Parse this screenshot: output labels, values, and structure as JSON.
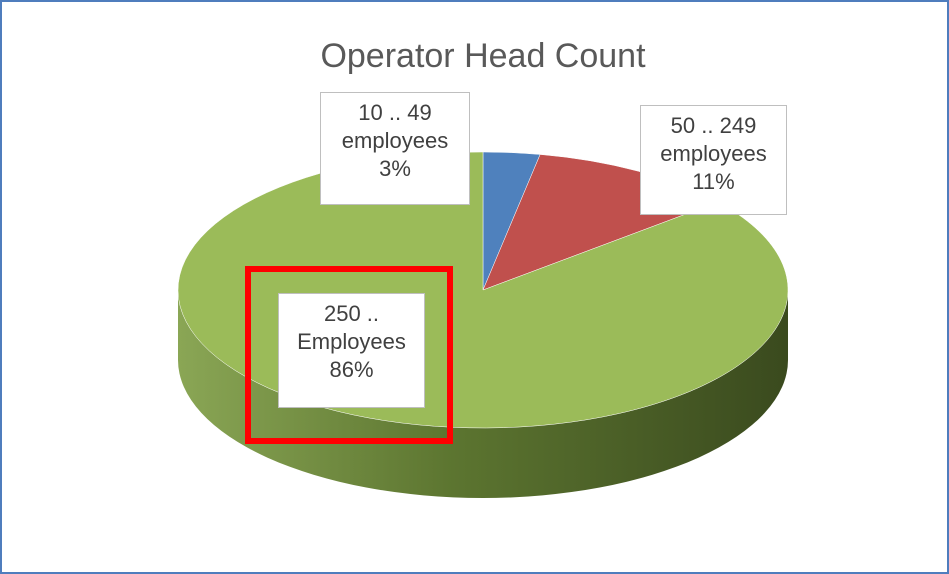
{
  "chart_data": {
    "type": "pie",
    "title": "Operator Head Count",
    "categories": [
      "10 .. 49 employees",
      "50 .. 249 employees",
      "250 .. Employees"
    ],
    "values": [
      3,
      11,
      86
    ],
    "value_labels": [
      "3%",
      "11%",
      "86%"
    ],
    "colors": [
      "#4f81bd",
      "#c0504d",
      "#9bbb59"
    ]
  }
}
